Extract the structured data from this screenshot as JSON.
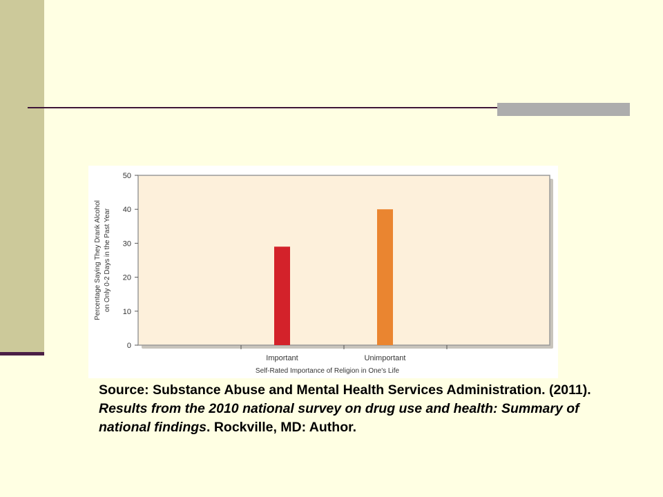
{
  "colors": {
    "background": "#FFFFE3",
    "side_band": "#CCC99A",
    "rule": "#3D1438",
    "rule_block": "#ADADAD",
    "plot_fill": "#FDF0DB",
    "important_bar": "#D3222A",
    "unimportant_bar": "#EA8530"
  },
  "chart_data": {
    "type": "bar",
    "title": "",
    "xlabel": "Self-Rated Importance of Religion in One's Life",
    "ylabel_lines": [
      "Percentage Saying They Drank Alcohol",
      "on Only 0-2 Days in the Past Year"
    ],
    "categories": [
      "Important",
      "Unimportant"
    ],
    "values": [
      29,
      40
    ],
    "ylim": [
      0,
      50
    ],
    "yticks": [
      "0",
      "10",
      "20",
      "30",
      "40",
      "50"
    ],
    "grid": false,
    "legend": "none"
  },
  "caption": {
    "part1": "Source: Substance Abuse and Mental Health Services Administration. (2011). ",
    "title": "Results from the 2010 national survey on drug use and health: Summary of national findings",
    "part2": ". Rockville, MD: Author."
  }
}
